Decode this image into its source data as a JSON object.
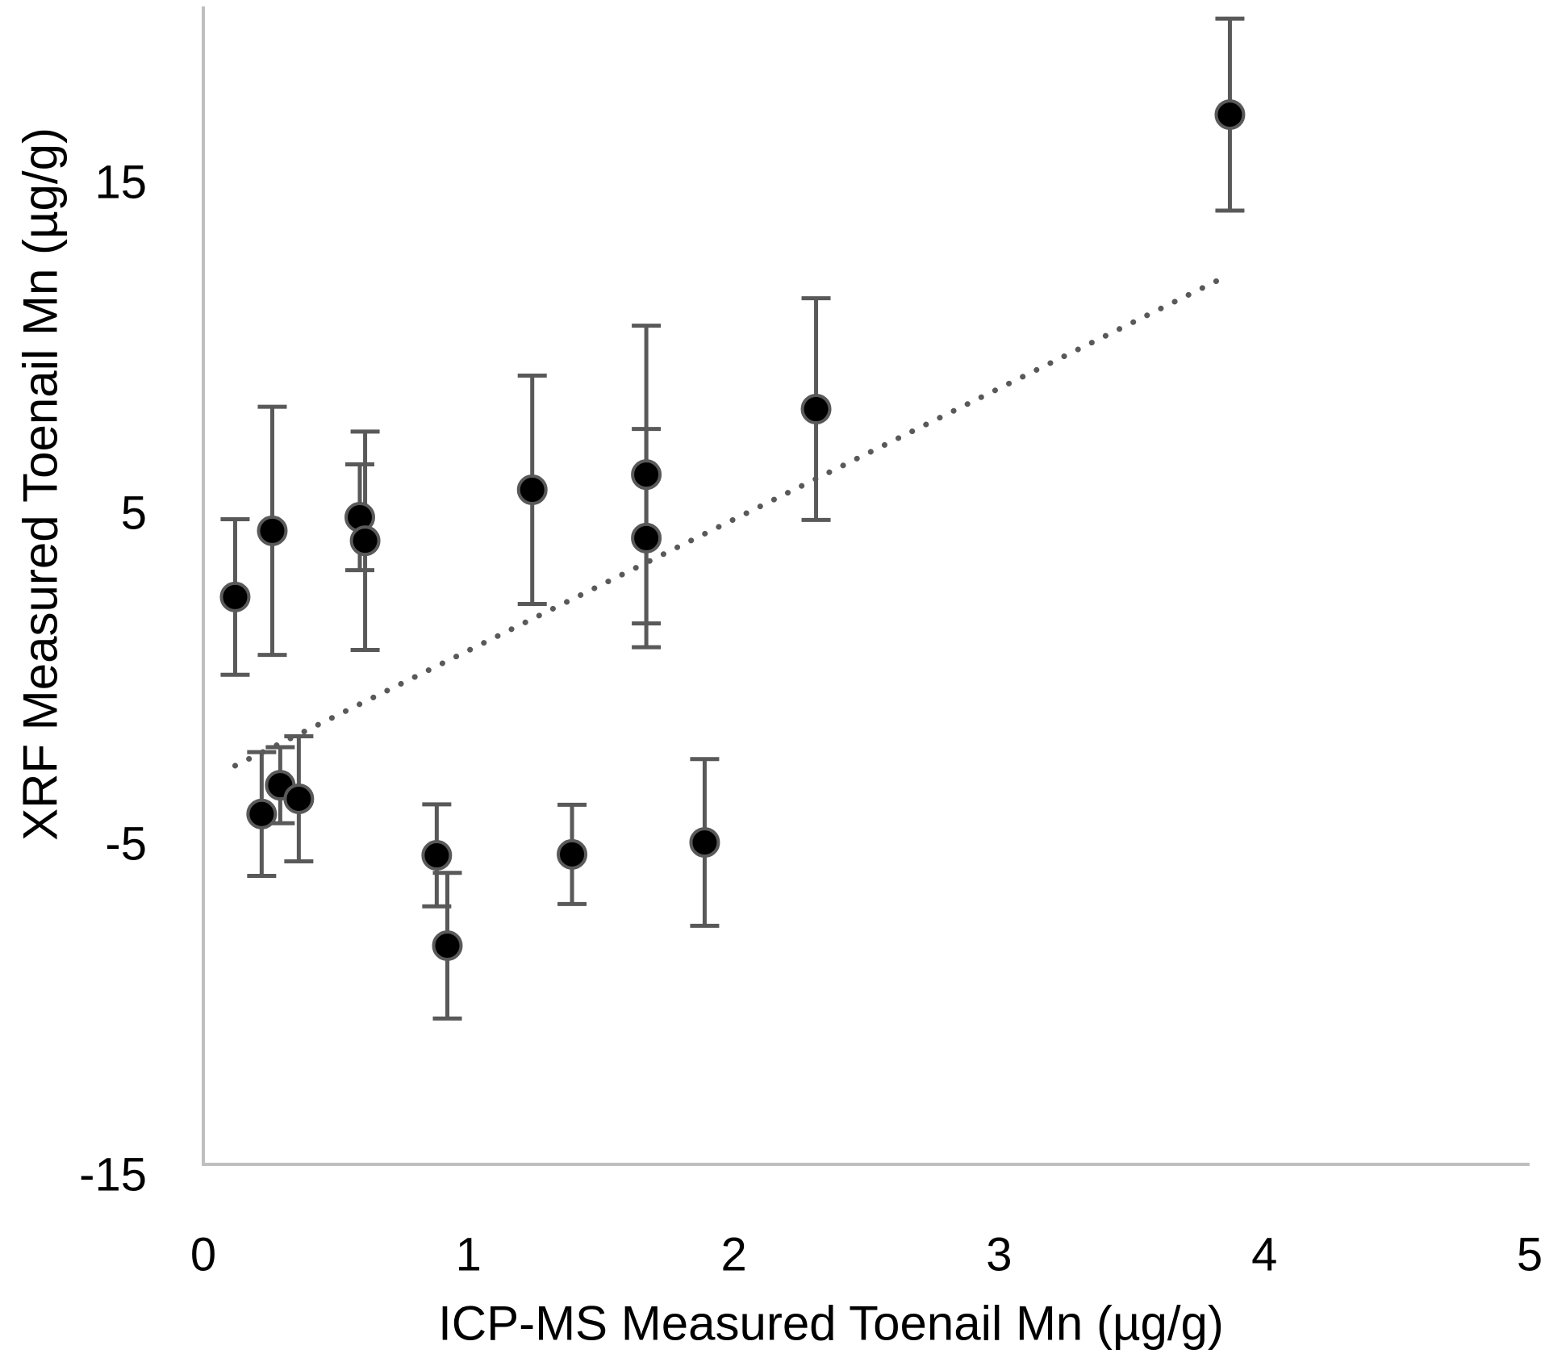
{
  "chart_data": {
    "type": "scatter",
    "title": "",
    "xlabel": "ICP-MS Measured Toenail Mn (µg/g)",
    "ylabel": "XRF Measured Toenail Mn (µg/g)",
    "xlim": [
      0,
      5
    ],
    "ylim": [
      -15,
      20
    ],
    "xticks": [
      0,
      1,
      2,
      3,
      4,
      5
    ],
    "xtick_labels": [
      "0",
      "1",
      "2",
      "3",
      "4",
      "5"
    ],
    "yticks": [
      -15,
      -5,
      5,
      15
    ],
    "ytick_labels": [
      "-15",
      "-5",
      "5",
      "15"
    ],
    "grid": false,
    "legend": "none",
    "colors": {
      "marker_fill": "#000000",
      "marker_edge": "#595959",
      "error_bar": "#595959",
      "trendline": "#595959",
      "axis": "#bfbfbf"
    },
    "series": [
      {
        "name": "Toenail Mn",
        "points": [
          {
            "x": 0.12,
            "y": 2.15,
            "err": 2.35
          },
          {
            "x": 0.26,
            "y": 4.15,
            "err": 3.75
          },
          {
            "x": 0.59,
            "y": 4.56,
            "err": 1.6
          },
          {
            "x": 0.61,
            "y": 3.85,
            "err": 3.3
          },
          {
            "x": 1.24,
            "y": 5.39,
            "err": 3.45
          },
          {
            "x": 1.67,
            "y": 5.85,
            "err": 4.5
          },
          {
            "x": 1.67,
            "y": 3.93,
            "err": 3.3
          },
          {
            "x": 2.31,
            "y": 7.83,
            "err": 3.35
          },
          {
            "x": 0.22,
            "y": -4.41,
            "err": 1.87
          },
          {
            "x": 0.29,
            "y": -3.54,
            "err": 1.15
          },
          {
            "x": 0.36,
            "y": -3.95,
            "err": 1.89
          },
          {
            "x": 0.88,
            "y": -5.66,
            "err": 1.54
          },
          {
            "x": 0.92,
            "y": -8.39,
            "err": 2.2
          },
          {
            "x": 1.39,
            "y": -5.63,
            "err": 1.5
          },
          {
            "x": 1.89,
            "y": -5.27,
            "err": 2.52
          },
          {
            "x": 3.87,
            "y": 16.73,
            "err": 2.9
          }
        ]
      }
    ],
    "trendline": {
      "type": "linear",
      "style": "dotted",
      "x_start": 0.12,
      "y_start": -2.95,
      "x_end": 3.87,
      "y_end": 11.9
    }
  }
}
